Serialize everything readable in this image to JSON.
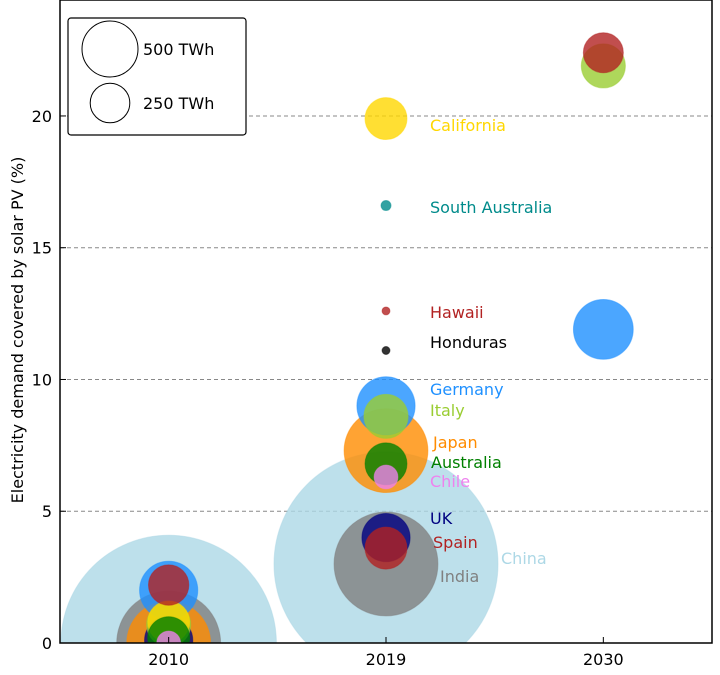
{
  "chart_data": {
    "type": "scatter",
    "subtype": "bubble",
    "title": "",
    "xlabel": "",
    "ylabel": "Electricity demand covered by solar PV (%)",
    "categories": [
      "2010",
      "2019",
      "2030"
    ],
    "ylim": [
      0,
      24.4
    ],
    "yticks": [
      0,
      5,
      10,
      15,
      20
    ],
    "grid": "horizontal dashed at 5, 10, 15, 20",
    "size_unit": "TWh",
    "size_legend": [
      {
        "label": "500 TWh",
        "value": 500
      },
      {
        "label": "250 TWh",
        "value": 250
      }
    ],
    "legend_position": "top-left",
    "series": [
      {
        "name": "China",
        "color": "#add8e6",
        "points": [
          {
            "x": "2010",
            "y": 0,
            "size": 7400
          },
          {
            "x": "2019",
            "y": 3.0,
            "size": 8000
          }
        ]
      },
      {
        "name": "India",
        "color": "#808080",
        "points": [
          {
            "x": "2010",
            "y": 0,
            "size": 1720
          },
          {
            "x": "2019",
            "y": 3.0,
            "size": 1720
          }
        ]
      },
      {
        "name": "Japan",
        "color": "#ff8c00",
        "points": [
          {
            "x": "2010",
            "y": 0,
            "size": 1120
          },
          {
            "x": "2019",
            "y": 7.3,
            "size": 1120
          }
        ]
      },
      {
        "name": "Germany",
        "color": "#1e90ff",
        "points": [
          {
            "x": "2010",
            "y": 2.0,
            "size": 540
          },
          {
            "x": "2019",
            "y": 9.0,
            "size": 540
          },
          {
            "x": "2030",
            "y": 11.9,
            "size": 570
          }
        ]
      },
      {
        "name": "UK",
        "color": "#000080",
        "points": [
          {
            "x": "2010",
            "y": 0.1,
            "size": 370
          },
          {
            "x": "2019",
            "y": 4.0,
            "size": 370
          }
        ]
      },
      {
        "name": "Italy",
        "color": "#9acd32",
        "points": [
          {
            "x": "2010",
            "y": 0.7,
            "size": 310
          },
          {
            "x": "2019",
            "y": 8.6,
            "size": 310
          },
          {
            "x": "2030",
            "y": 21.9,
            "size": 310
          }
        ]
      },
      {
        "name": "California",
        "color": "#ffd700",
        "points": [
          {
            "x": "2010",
            "y": 0.8,
            "size": 280
          },
          {
            "x": "2019",
            "y": 19.9,
            "size": 280
          }
        ]
      },
      {
        "name": "Australia",
        "color": "#008000",
        "points": [
          {
            "x": "2010",
            "y": 0.2,
            "size": 280
          },
          {
            "x": "2019",
            "y": 6.8,
            "size": 280
          }
        ]
      },
      {
        "name": "Spain",
        "color": "#b22222",
        "points": [
          {
            "x": "2010",
            "y": 2.2,
            "size": 260
          },
          {
            "x": "2019",
            "y": 3.6,
            "size": 280
          },
          {
            "x": "2030",
            "y": 22.4,
            "size": 255
          }
        ]
      },
      {
        "name": "Chile",
        "color": "#ee82ee",
        "points": [
          {
            "x": "2010",
            "y": 0,
            "size": 90
          },
          {
            "x": "2019",
            "y": 6.3,
            "size": 90
          }
        ]
      },
      {
        "name": "South Australia",
        "color": "#008b8b",
        "points": [
          {
            "x": "2019",
            "y": 16.6,
            "size": 16
          }
        ]
      },
      {
        "name": "Hawaii",
        "color": "#b22222",
        "points": [
          {
            "x": "2019",
            "y": 12.6,
            "size": 10
          }
        ]
      },
      {
        "name": "Honduras",
        "color": "#000000",
        "points": [
          {
            "x": "2019",
            "y": 11.1,
            "size": 10
          }
        ]
      }
    ]
  }
}
